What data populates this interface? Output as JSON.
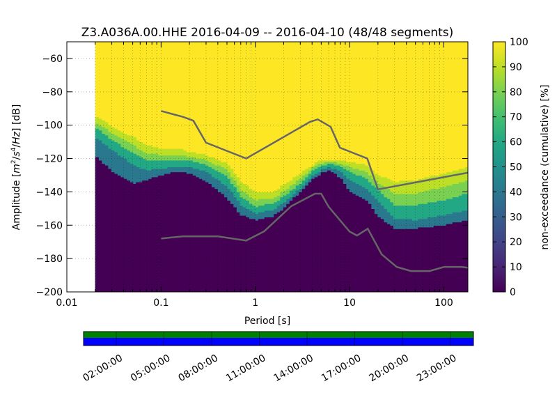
{
  "chart_data": {
    "type": "heatmap",
    "title": "Z3.A036A.00.HHE   2016-04-09 -- 2016-04-10  (48/48 segments)",
    "xlabel": "Period [s]",
    "ylabel": "Amplitude [m²/s⁴/Hz] [dB]",
    "ylabel_parts": {
      "prefix": "Amplitude [",
      "m": "m",
      "exp2": "2",
      "slash1": "/",
      "s": "s",
      "exp4": "4",
      "slash2": "/",
      "hz": "Hz",
      "suffix": "] [dB]"
    },
    "x_scale": "log",
    "xlim": [
      0.01,
      180
    ],
    "ylim": [
      -200,
      -50
    ],
    "x_ticks": [
      {
        "value": 0.01,
        "label": "0.01"
      },
      {
        "value": 0.1,
        "label": "0.1"
      },
      {
        "value": 1,
        "label": "1"
      },
      {
        "value": 10,
        "label": "10"
      },
      {
        "value": 100,
        "label": "100"
      }
    ],
    "y_ticks": [
      {
        "value": -60,
        "label": "−60"
      },
      {
        "value": -80,
        "label": "−80"
      },
      {
        "value": -100,
        "label": "−100"
      },
      {
        "value": -120,
        "label": "−120"
      },
      {
        "value": -140,
        "label": "−140"
      },
      {
        "value": -160,
        "label": "−160"
      },
      {
        "value": -180,
        "label": "−180"
      },
      {
        "value": -200,
        "label": "−200"
      }
    ],
    "grid": true,
    "data_period_range": [
      0.02,
      180
    ],
    "colormap": "viridis",
    "colorbar": {
      "label": "non-exceedance (cumulative) [%]",
      "range": [
        0,
        100
      ],
      "ticks": [
        {
          "value": 0,
          "label": "0"
        },
        {
          "value": 10,
          "label": "10"
        },
        {
          "value": 20,
          "label": "20"
        },
        {
          "value": 30,
          "label": "30"
        },
        {
          "value": 40,
          "label": "40"
        },
        {
          "value": 50,
          "label": "50"
        },
        {
          "value": 60,
          "label": "60"
        },
        {
          "value": 70,
          "label": "70"
        },
        {
          "value": 80,
          "label": "80"
        },
        {
          "value": 90,
          "label": "90"
        },
        {
          "value": 100,
          "label": "100"
        }
      ]
    },
    "distribution_edges": {
      "period": [
        0.02,
        0.03,
        0.05,
        0.07,
        0.1,
        0.15,
        0.2,
        0.3,
        0.5,
        0.7,
        1,
        1.5,
        2,
        3,
        4,
        5,
        6,
        8,
        10,
        15,
        20,
        30,
        50,
        100,
        180
      ],
      "p0": [
        -118,
        -128,
        -135,
        -133,
        -130,
        -128,
        -129,
        -134,
        -144,
        -154,
        -157,
        -155,
        -150,
        -140,
        -133,
        -129,
        -127,
        -132,
        -140,
        -145,
        -155,
        -162,
        -162,
        -160,
        -157
      ],
      "p30": [
        -107,
        -115,
        -124,
        -127,
        -126,
        -125,
        -125,
        -128,
        -137,
        -148,
        -153,
        -151,
        -147,
        -138,
        -131,
        -127,
        -125,
        -128,
        -133,
        -138,
        -146,
        -156,
        -157,
        -154,
        -151
      ],
      "p60": [
        -101,
        -109,
        -117,
        -121,
        -121,
        -121,
        -121,
        -124,
        -131,
        -143,
        -149,
        -147,
        -143,
        -135,
        -128,
        -125,
        -123,
        -125,
        -128,
        -132,
        -139,
        -148,
        -148,
        -145,
        -141
      ],
      "p80": [
        -98,
        -105,
        -112,
        -117,
        -118,
        -118,
        -119,
        -121,
        -127,
        -139,
        -145,
        -144,
        -140,
        -132,
        -126,
        -123,
        -122,
        -123,
        -125,
        -128,
        -135,
        -141,
        -141,
        -137,
        -133
      ],
      "p95": [
        -94,
        -101,
        -107,
        -112,
        -114,
        -114,
        -116,
        -118,
        -123,
        -134,
        -140,
        -140,
        -136,
        -129,
        -124,
        -121,
        -121,
        -121,
        -122,
        -124,
        -130,
        -134,
        -133,
        -129,
        -125
      ]
    },
    "noise_models": [
      {
        "name": "",
        "x": [
          0.1,
          0.17,
          0.22,
          0.3,
          0.8,
          3.8,
          4.6,
          6.3,
          7.9,
          15.4,
          20,
          180
        ],
        "y": [
          -91.5,
          -95,
          -97.3,
          -110.5,
          -120,
          -98,
          -96.5,
          -101,
          -113.5,
          -120,
          -138.5,
          -128.5
        ]
      },
      {
        "name": "",
        "x": [
          0.1,
          0.17,
          0.4,
          0.8,
          1.24,
          2.4,
          4.3,
          5,
          6,
          10,
          12,
          15.6,
          21.9,
          31.6,
          45,
          70,
          101,
          154,
          180
        ],
        "y": [
          -168,
          -166.7,
          -166.7,
          -169.2,
          -163.7,
          -148.6,
          -141.1,
          -141.1,
          -149,
          -163.8,
          -166.2,
          -162.1,
          -177.5,
          -185,
          -187.5,
          -187.5,
          -185,
          -185,
          -185.5
        ]
      }
    ],
    "timeline": {
      "tick_labels": [
        "02:00:00",
        "05:00:00",
        "08:00:00",
        "11:00:00",
        "14:00:00",
        "17:00:00",
        "20:00:00",
        "23:00:00"
      ],
      "data_available_color": "#008000",
      "gap_fill_color": "#0000ff"
    }
  }
}
